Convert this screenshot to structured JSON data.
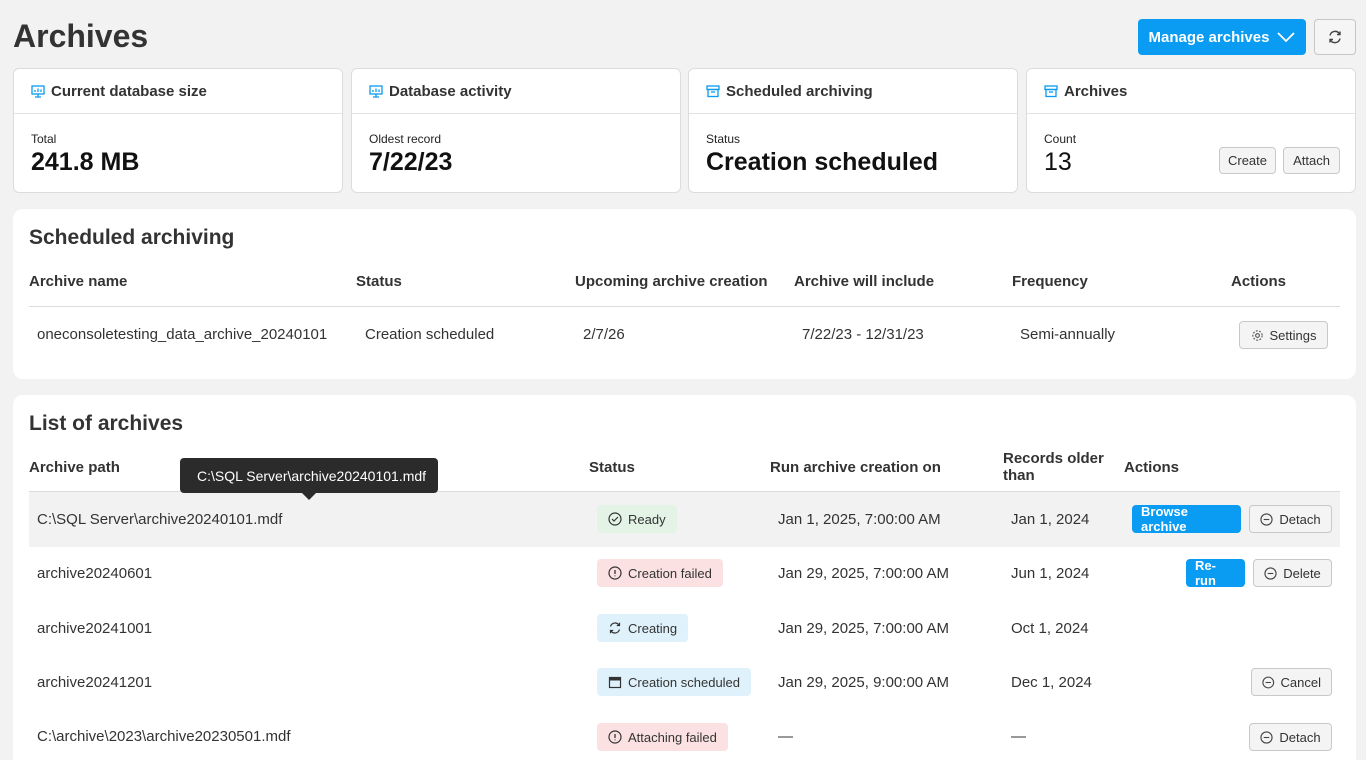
{
  "header": {
    "title": "Archives",
    "manage_label": "Manage archives"
  },
  "cards": {
    "db_size": {
      "title": "Current database size",
      "label": "Total",
      "value": "241.8 MB"
    },
    "activity": {
      "title": "Database activity",
      "label": "Oldest record",
      "value": "7/22/23"
    },
    "scheduled": {
      "title": "Scheduled archiving",
      "label": "Status",
      "value": "Creation scheduled"
    },
    "archives": {
      "title": "Archives",
      "label": "Count",
      "value": "13",
      "create_label": "Create",
      "attach_label": "Attach"
    }
  },
  "scheduled_panel": {
    "title": "Scheduled archiving",
    "columns": [
      "Archive name",
      "Status",
      "Upcoming archive creation",
      "Archive will include",
      "Frequency",
      "Actions"
    ],
    "row": {
      "name": "oneconsoletesting_data_archive_20240101",
      "status": "Creation scheduled",
      "upcoming": "2/7/26",
      "include": "7/22/23 - 12/31/23",
      "frequency": "Semi-annually",
      "action": "Settings"
    }
  },
  "archives_panel": {
    "title": "List of archives",
    "columns": {
      "path": "Archive path",
      "status": "Status",
      "run": "Run archive creation on",
      "records_line1": "Records older",
      "records_line2": "than",
      "actions": "Actions"
    },
    "tooltip": "C:\\SQL Server\\archive20240101.mdf",
    "rows": [
      {
        "path": "C:\\SQL Server\\archive20240101.mdf",
        "status": "Ready",
        "run": "Jan 1, 2025, 7:00:00 AM",
        "records": "Jan 1, 2024",
        "primary_action": "Browse archive",
        "secondary_action": "Detach"
      },
      {
        "path": "archive20240601",
        "status": "Creation failed",
        "run": "Jan 29, 2025, 7:00:00 AM",
        "records": "Jun 1, 2024",
        "primary_action": "Re-run",
        "secondary_action": "Delete"
      },
      {
        "path": "archive20241001",
        "status": "Creating",
        "run": "Jan 29, 2025, 7:00:00 AM",
        "records": "Oct 1, 2024"
      },
      {
        "path": "archive20241201",
        "status": "Creation scheduled",
        "run": "Jan 29, 2025, 9:00:00 AM",
        "records": "Dec 1, 2024",
        "secondary_action": "Cancel"
      },
      {
        "path": "C:\\archive\\2023\\archive20230501.mdf",
        "status": "Attaching failed",
        "run": "—",
        "records": "—",
        "secondary_action": "Detach"
      }
    ]
  },
  "colors": {
    "accent": "#0a9bf2",
    "success_bg": "#e3f4e6",
    "error_bg": "#fbe1e1",
    "info_bg": "#dff1fb"
  }
}
